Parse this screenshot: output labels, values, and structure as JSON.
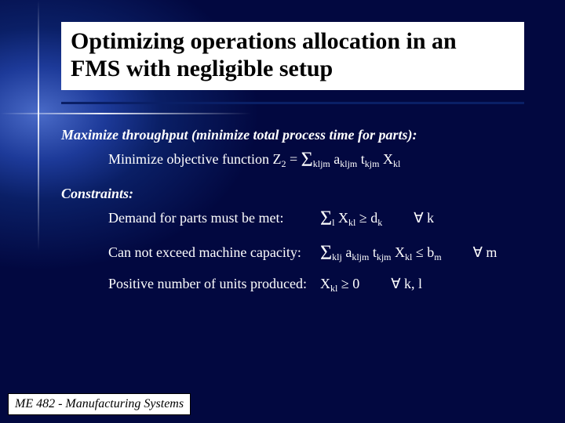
{
  "title": {
    "line1": "Optimizing operations allocation in an",
    "line2": "FMS with negligible setup",
    "fontsize": 30,
    "color": "#000000",
    "bg": "#ffffff"
  },
  "section1": {
    "heading": "Maximize throughput (minimize total process time for parts):",
    "line_label": "Minimize objective function  Z",
    "z_sub": "2",
    "eq": " = ",
    "sigma": "Σ",
    "sig_sub": "kljm",
    "terms": " a",
    "a_sub": "kljm",
    "t": " t",
    "t_sub": "kjm",
    "x": " X",
    "x_sub": "kl",
    "fontsize": 18
  },
  "section2": {
    "heading": "Constraints:",
    "rows": [
      {
        "label": "Demand for parts must be met:",
        "sigma": "Σ",
        "sig_sub": "l",
        "x": " X",
        "x_sub": "kl",
        "op": "  ≥  d",
        "op_sub": "k",
        "qual": "∀ k"
      },
      {
        "label": "Can not exceed machine capacity:",
        "sigma": "Σ",
        "sig_sub": "klj",
        "a": " a",
        "a_sub": "kljm",
        "t": " t",
        "t_sub": "kjm",
        "x": " X",
        "x_sub": "kl",
        "op": "  ≤  b",
        "op_sub": "m",
        "qual": "∀ m"
      },
      {
        "label": "Positive number of units produced:",
        "x": " X",
        "x_sub": "kl",
        "op": "  ≥  0",
        "qual": "∀ k, l"
      }
    ],
    "fontsize": 18
  },
  "footer": {
    "text": "ME 482 - Manufacturing Systems",
    "fontsize": 16
  },
  "colors": {
    "text": "#ffffff",
    "bg_center": "#4a6bc8",
    "bg_outer": "#020840",
    "underline": "#0a1f66"
  }
}
